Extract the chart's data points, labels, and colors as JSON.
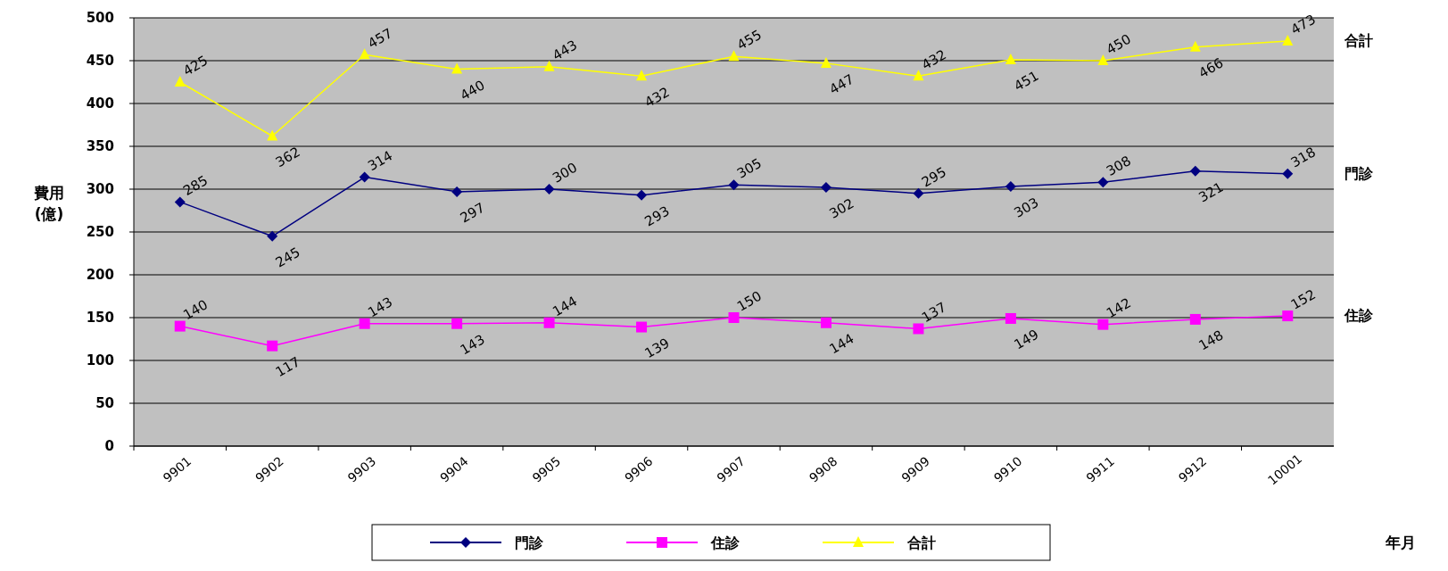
{
  "chart_data": {
    "type": "line",
    "xlabel": "年月",
    "ylabel": "費用 (億)",
    "categories": [
      "9901",
      "9902",
      "9903",
      "9904",
      "9905",
      "9906",
      "9907",
      "9908",
      "9909",
      "9910",
      "9911",
      "9912",
      "10001"
    ],
    "series": [
      {
        "name": "門診",
        "color": "#000080",
        "marker": "diamond",
        "values": [
          285,
          245,
          314,
          297,
          300,
          293,
          305,
          302,
          295,
          303,
          308,
          321,
          318
        ]
      },
      {
        "name": "住診",
        "color": "#ff00ff",
        "marker": "square",
        "values": [
          140,
          117,
          143,
          143,
          144,
          139,
          150,
          144,
          137,
          149,
          142,
          148,
          152
        ]
      },
      {
        "name": "合計",
        "color": "#ffff00",
        "marker": "triangle",
        "values": [
          425,
          362,
          457,
          440,
          443,
          432,
          455,
          447,
          432,
          451,
          450,
          466,
          473
        ]
      }
    ],
    "ylim": [
      0,
      500
    ],
    "yticks": [
      0,
      50,
      100,
      150,
      200,
      250,
      300,
      350,
      400,
      450,
      500
    ],
    "grid": "y",
    "legend": "bottom",
    "data_labels": true,
    "line_style": "solid"
  }
}
